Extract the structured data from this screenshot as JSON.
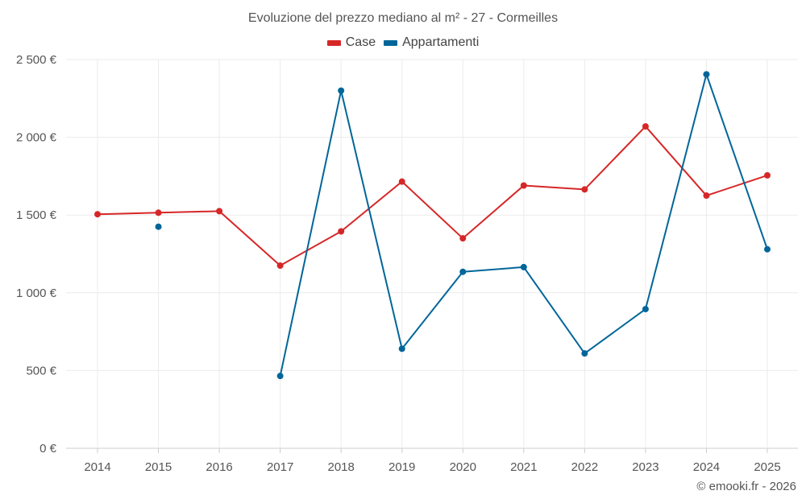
{
  "chart_data": {
    "type": "line",
    "title": "Evoluzione del prezzo mediano al m² - 27 - Cormeilles",
    "categories": [
      "2014",
      "2015",
      "2016",
      "2017",
      "2018",
      "2019",
      "2020",
      "2021",
      "2022",
      "2023",
      "2024",
      "2025"
    ],
    "ylim": [
      0,
      2500
    ],
    "yticks": [
      0,
      500,
      1000,
      1500,
      2000,
      2500
    ],
    "ytick_labels": [
      "0 €",
      "500 €",
      "1 000 €",
      "1 500 €",
      "2 000 €",
      "2 500 €"
    ],
    "grid": true,
    "legend_position": "top-center",
    "series": [
      {
        "name": "Case",
        "color": "#d62728",
        "values": [
          1505,
          1515,
          1525,
          1175,
          1395,
          1715,
          1350,
          1690,
          1665,
          2070,
          1625,
          1755
        ]
      },
      {
        "name": "Appartamenti",
        "color": "#006699",
        "values": [
          null,
          1425,
          null,
          465,
          2300,
          640,
          1135,
          1165,
          610,
          895,
          2405,
          1280
        ]
      }
    ]
  },
  "watermark": "© emooki.fr - 2026"
}
